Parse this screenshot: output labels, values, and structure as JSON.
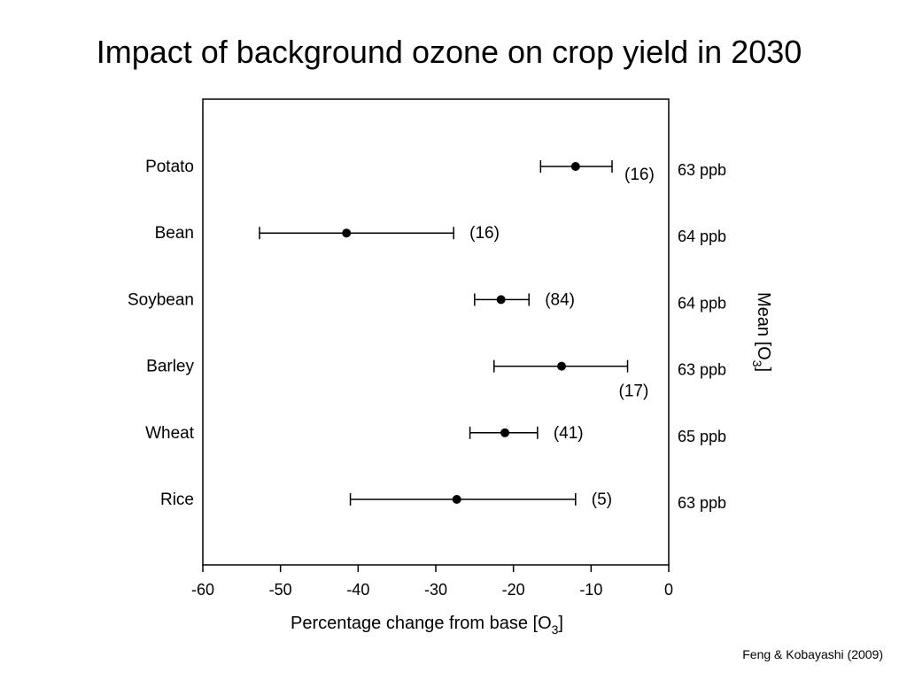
{
  "slide": {
    "title": "Impact of background ozone on crop yield in 2030",
    "citation": "Feng & Kobayashi (2009)"
  },
  "chart_data": {
    "type": "scatter",
    "subtype": "dot-and-whisker",
    "title": "",
    "xlabel_parts": [
      "Percentage change from base [O",
      "3",
      "]"
    ],
    "right_label_parts": [
      "Mean [O",
      "3",
      "]"
    ],
    "xlim": [
      -60,
      0
    ],
    "xticks": [
      -60,
      -50,
      -40,
      -30,
      -20,
      -10,
      0
    ],
    "xtick_labels": [
      "-60",
      "-50",
      "-40",
      "-30",
      "-20",
      "-10",
      "0"
    ],
    "grid": false,
    "legend": "none",
    "marker_color": "#000000",
    "rows": [
      {
        "crop": "Potato",
        "mean": -12.0,
        "ci_low": -16.5,
        "ci_high": -7.3,
        "n_label": "(16)",
        "n_label_pos": "right-below",
        "ozone": "63 ppb"
      },
      {
        "crop": "Bean",
        "mean": -41.5,
        "ci_low": -52.7,
        "ci_high": -27.7,
        "n_label": "(16)",
        "n_label_pos": "right",
        "ozone": "64 ppb"
      },
      {
        "crop": "Soybean",
        "mean": -21.6,
        "ci_low": -25.0,
        "ci_high": -18.0,
        "n_label": "(84)",
        "n_label_pos": "right",
        "ozone": "64 ppb"
      },
      {
        "crop": "Barley",
        "mean": -13.8,
        "ci_low": -22.5,
        "ci_high": -5.3,
        "n_label": "(17)",
        "n_label_pos": "below-right",
        "ozone": "63 ppb"
      },
      {
        "crop": "Wheat",
        "mean": -21.1,
        "ci_low": -25.6,
        "ci_high": -16.9,
        "n_label": "(41)",
        "n_label_pos": "right",
        "ozone": "65 ppb"
      },
      {
        "crop": "Rice",
        "mean": -27.3,
        "ci_low": -41.0,
        "ci_high": -12.0,
        "n_label": "(5)",
        "n_label_pos": "right",
        "ozone": "63 ppb"
      }
    ]
  }
}
